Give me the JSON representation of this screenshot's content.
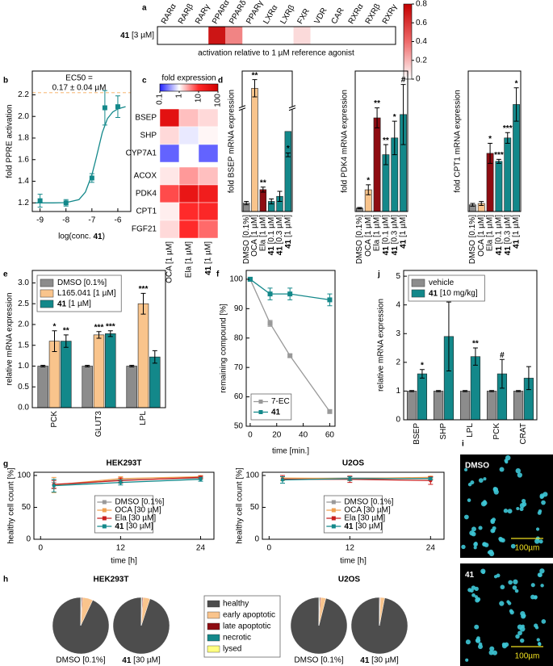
{
  "chart_data": [
    {
      "type": "heatmap",
      "label": "a",
      "columns": [
        "RARα",
        "RARβ",
        "RARγ",
        "PPARα",
        "PPARδ",
        "PPARγ",
        "LXRα",
        "LXRβ",
        "FXR",
        "VDR",
        "CAR",
        "RXRα",
        "RXRβ",
        "RXRγ"
      ],
      "rows": [
        "41 [3 µM]"
      ],
      "values": [
        [
          0,
          0,
          0,
          0.72,
          0.33,
          0,
          0,
          0,
          0.1,
          0,
          0,
          0,
          0,
          0
        ]
      ],
      "caption": "activation relative to 1 µM reference agonist",
      "colorbar": {
        "lim": [
          0,
          0.8
        ],
        "ticks": [
          0,
          0.2,
          0.4,
          0.6,
          0.8
        ],
        "colors": [
          "#ffffff",
          "#ee6a6a",
          "#c40000"
        ]
      }
    },
    {
      "type": "line",
      "label": "b",
      "x": [
        -9,
        -8,
        -7,
        -6.5,
        -6
      ],
      "series": [
        {
          "color": "#13888a",
          "values": [
            1.22,
            1.2,
            1.43,
            2.08,
            2.09
          ],
          "errors": [
            0.06,
            0.03,
            0.04,
            0.16,
            0.1
          ]
        }
      ],
      "fit": {
        "x": [
          -9.2,
          -8.5,
          -8,
          -7.5,
          -7.25,
          -7,
          -6.85,
          -6.75,
          -6.6,
          -6.4,
          -6.2,
          -6,
          -5.7
        ],
        "values": [
          1.2,
          1.2,
          1.202,
          1.23,
          1.3,
          1.46,
          1.6,
          1.7,
          1.85,
          1.98,
          2.04,
          2.07,
          2.09
        ]
      },
      "reference_line": 2.22,
      "reference_color": "#f9c48c",
      "annotation": [
        "EC50 =",
        "0.17 ± 0.04 µM"
      ],
      "marker": "square",
      "xlabel": "log(conc. 41)",
      "ylabel": "fold PPRE activation",
      "xlim": [
        -9.3,
        -5.5
      ],
      "ylim": [
        1.12,
        2.42
      ],
      "xticks": [
        -9,
        -8,
        -7,
        -6
      ],
      "yticks": [
        1.2,
        1.4,
        1.6,
        1.8,
        {
          "value": 2,
          "label": "2.0"
        },
        2.2
      ]
    },
    {
      "type": "heatmap",
      "label": "c",
      "columns": [
        "OCA [1 µM]",
        "Ela [1 µM]",
        "41 [1 µM]"
      ],
      "rows": [
        "BSEP",
        "SHP",
        "CYP7A1",
        "ACOX",
        "PDK4",
        "CPT1",
        "FGF21"
      ],
      "values": [
        [
          40,
          2,
          1.5
        ],
        [
          1.5,
          0.8,
          1.1
        ],
        [
          0.2,
          1,
          0.2
        ],
        [
          1.3,
          3,
          2
        ],
        [
          7,
          30,
          20
        ],
        [
          1.2,
          10,
          12
        ],
        [
          1.5,
          10,
          5
        ]
      ],
      "log_scale": true,
      "colorbar": {
        "title": "fold expression",
        "lim": [
          0.1,
          100
        ],
        "ticks": [
          0.1,
          1,
          10,
          100
        ],
        "colors": [
          "#2020ff",
          "#ffffff",
          "#ff2a2a",
          "#d00000"
        ]
      }
    },
    {
      "type": "bar",
      "label": "d",
      "categories": [
        "DMSO [0.1%]",
        "OCA [1 µM]",
        "Ela [1 µM]",
        "41 [0.1 µM]",
        "41 [0.3 µM]",
        "41 [1 µM]"
      ],
      "values": [
        1,
        50,
        2.6,
        1.2,
        1.8,
        9.5
      ],
      "errors": [
        0.2,
        5,
        0.3,
        0.3,
        0.6,
        3
      ],
      "colors": [
        "#8c8c8c",
        "#f9c48c",
        "#8e0c12",
        "#13888a",
        "#13888a",
        "#13888a"
      ],
      "annotations": [
        null,
        "**",
        "**",
        null,
        null,
        "*"
      ],
      "ylabel": "fold BSEP mRNA expression",
      "ylim": [
        0,
        60
      ],
      "axis_break": [
        12,
        40
      ]
    },
    {
      "type": "bar",
      "categories": [
        "DMSO [0.1%]",
        "OCA [1 µM]",
        "Ela [1 µM]",
        "41 [0.1 µM]",
        "41 [0.3 µM]",
        "41 [1 µM]"
      ],
      "values": [
        1,
        6.5,
        28,
        17,
        22,
        29
      ],
      "errors": [
        0.2,
        1.5,
        3,
        3,
        5,
        9
      ],
      "colors": [
        "#8c8c8c",
        "#f9c48c",
        "#8e0c12",
        "#13888a",
        "#13888a",
        "#13888a"
      ],
      "annotations": [
        null,
        "*",
        "**",
        "**",
        "*",
        "#"
      ],
      "ylabel": "fold PDK4 mRNA expression",
      "ylim": [
        0,
        42
      ]
    },
    {
      "type": "bar",
      "categories": [
        "DMSO [0.1%]",
        "OCA [1 µM]",
        "Ela [1 µM]",
        "41 [0.1 µM]",
        "41 [0.3 µM]",
        "41 [1 µM]"
      ],
      "values": [
        1,
        1.2,
        8.7,
        7.5,
        11,
        16
      ],
      "errors": [
        0.2,
        0.3,
        1.5,
        0.3,
        0.8,
        2.5
      ],
      "colors": [
        "#8c8c8c",
        "#f9c48c",
        "#8e0c12",
        "#13888a",
        "#13888a",
        "#13888a"
      ],
      "annotations": [
        null,
        null,
        "*",
        "***",
        "***",
        "*"
      ],
      "ylabel": "fold CPT1 mRNA expression",
      "ylim": [
        0,
        21
      ]
    },
    {
      "type": "grouped_bar",
      "label": "e",
      "categories": [
        "PCK",
        "GLUT3",
        "LPL"
      ],
      "series": [
        {
          "name": "DMSO [0.1%]",
          "color": "#8c8c8c",
          "values": [
            1,
            1,
            1
          ],
          "errors": [
            0.02,
            0.02,
            0.02
          ]
        },
        {
          "name": "L165.041 [1 µM]",
          "color": "#f9c48c",
          "values": [
            1.6,
            1.75,
            2.5
          ],
          "errors": [
            0.25,
            0.08,
            0.25
          ],
          "annotations": [
            "*",
            "***",
            "***"
          ]
        },
        {
          "name": "41 [1 µM]",
          "color": "#13888a",
          "values": [
            1.6,
            1.78,
            1.22
          ],
          "errors": [
            0.15,
            0.07,
            0.15
          ],
          "annotations": [
            "**",
            "***",
            null
          ]
        }
      ],
      "ylabel": "relative mRNA expression",
      "ylim": [
        0,
        3.3
      ],
      "yticks": [
        {
          "value": 0,
          "label": "0.0"
        },
        0.5,
        {
          "value": 1,
          "label": "1.0"
        },
        1.5,
        {
          "value": 2,
          "label": "2.0"
        },
        2.5,
        {
          "value": 3,
          "label": "3.0"
        }
      ],
      "legend": "upper left"
    },
    {
      "type": "line",
      "label": "f",
      "x": [
        0,
        15,
        30,
        60
      ],
      "series": [
        {
          "name": "7-EC",
          "color": "#999999",
          "values": [
            100,
            85,
            74,
            55
          ],
          "errors": [
            0.5,
            1,
            0.5,
            0.5
          ]
        },
        {
          "name": "41",
          "color": "#13888a",
          "values": [
            100,
            95,
            95,
            93
          ],
          "errors": [
            0.5,
            2,
            2,
            2
          ]
        }
      ],
      "marker": "square",
      "xlabel": "time [min.]",
      "ylabel": "remaining compound [%]",
      "xlim": [
        -3,
        64
      ],
      "ylim": [
        50,
        103
      ],
      "xticks": [
        0,
        20,
        40,
        60
      ],
      "yticks": [
        50,
        60,
        70,
        80,
        90,
        100
      ],
      "legend": "lower left"
    },
    {
      "type": "grouped_bar",
      "label": "j",
      "categories": [
        "BSEP",
        "SHP",
        "LPL",
        "PCK",
        "CRAT"
      ],
      "series": [
        {
          "name": "vehicle",
          "color": "#8c8c8c",
          "values": [
            1,
            1,
            1,
            1,
            1
          ],
          "errors": [
            0.02,
            0.02,
            0.02,
            0.02,
            0.02
          ]
        },
        {
          "name": "41 [10 mg/kg]",
          "color": "#13888a",
          "values": [
            1.6,
            2.9,
            2.2,
            1.6,
            1.45
          ],
          "errors": [
            0.15,
            1.2,
            0.3,
            0.5,
            0.4
          ],
          "annotations": [
            "*",
            "#",
            "**",
            "#",
            null
          ]
        }
      ],
      "ylabel": "relative mRNA expression",
      "ylim": [
        0,
        5.2
      ],
      "yticks": [
        0,
        1,
        2,
        3,
        4,
        5
      ],
      "legend": "upper left"
    },
    {
      "type": "line",
      "label": "g",
      "title": "HEK293T",
      "x": [
        2,
        12,
        24
      ],
      "series": [
        {
          "name": "DMSO [0.1%]",
          "color": "#999999",
          "values": [
            84,
            93,
            96
          ],
          "errors": [
            5,
            3,
            2
          ]
        },
        {
          "name": "OCA [30 µM]",
          "color": "#f0a050",
          "values": [
            85,
            95,
            98
          ],
          "errors": [
            12,
            3,
            2
          ]
        },
        {
          "name": "Ela [30 µM]",
          "color": "#c81e1e",
          "values": [
            86,
            92,
            97
          ],
          "errors": [
            6,
            4,
            2
          ]
        },
        {
          "name": "41 [30 µM]",
          "color": "#13888a",
          "values": [
            84,
            89,
            94
          ],
          "errors": [
            10,
            4,
            3
          ]
        }
      ],
      "marker": "circle",
      "xlabel": "time [h]",
      "ylabel": "healthy cell count [%]",
      "xlim": [
        -1,
        26
      ],
      "ylim": [
        0,
        105
      ],
      "xticks": [
        0,
        12,
        24
      ],
      "yticks": [
        0,
        50,
        100
      ],
      "legend": "lower center"
    },
    {
      "type": "line",
      "title": "U2OS",
      "x": [
        2,
        12,
        24
      ],
      "series": [
        {
          "name": "DMSO [0.1%]",
          "color": "#999999",
          "values": [
            95,
            96,
            96
          ],
          "errors": [
            3,
            2,
            2
          ]
        },
        {
          "name": "OCA [30 µM]",
          "color": "#f0a050",
          "values": [
            96,
            95,
            97
          ],
          "errors": [
            4,
            3,
            2
          ]
        },
        {
          "name": "Ela [30 µM]",
          "color": "#c81e1e",
          "values": [
            94,
            94,
            92
          ],
          "errors": [
            6,
            5,
            6
          ]
        },
        {
          "name": "41 [30 µM]",
          "color": "#13888a",
          "values": [
            93,
            95,
            95
          ],
          "errors": [
            5,
            3,
            2
          ]
        }
      ],
      "marker": "circle",
      "xlabel": "time [h]",
      "ylabel": "healthy cell count [%]",
      "xlim": [
        -1,
        26
      ],
      "ylim": [
        0,
        105
      ],
      "xticks": [
        0,
        12,
        24
      ],
      "yticks": [
        0,
        50,
        100
      ],
      "legend": "lower center"
    },
    {
      "type": "pie",
      "label": "h",
      "categories": [
        "healthy",
        "early apoptotic",
        "late apoptotic",
        "necrotic",
        "lysed"
      ],
      "colors": [
        "#4d4d4d",
        "#f9c48c",
        "#8e0c12",
        "#13888a",
        "#ffff80"
      ],
      "groups": [
        {
          "title": "HEK293T",
          "pies": [
            {
              "label": "DMSO [0.1%]",
              "values": [
                93,
                6,
                0.5,
                0.3,
                0.2
              ]
            },
            {
              "label": "41 [30 µM]",
              "values": [
                95,
                4,
                0.5,
                0.3,
                0.2
              ]
            }
          ]
        },
        {
          "title": "U2OS",
          "pies": [
            {
              "label": "DMSO [0.1%]",
              "values": [
                96,
                3,
                0.5,
                0.3,
                0.2
              ]
            },
            {
              "label": "41 [30 µM]",
              "values": [
                97,
                2.5,
                0.3,
                0.1,
                0.1
              ]
            }
          ]
        }
      ]
    },
    {
      "type": "image",
      "label": "i",
      "panels": [
        {
          "title": "DMSO",
          "scale_bar": "100µm"
        },
        {
          "title": "41",
          "scale_bar": "100µm"
        }
      ]
    }
  ]
}
